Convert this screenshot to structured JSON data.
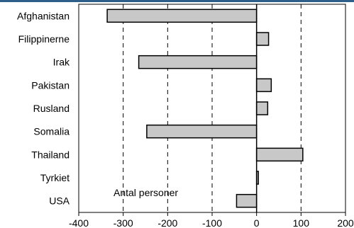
{
  "chart_data": {
    "type": "bar",
    "orientation": "horizontal",
    "categories": [
      "Afghanistan",
      "Filippinerne",
      "Irak",
      "Pakistan",
      "Rusland",
      "Somalia",
      "Thailand",
      "Tyrkiet",
      "USA"
    ],
    "values": [
      -336,
      27,
      -265,
      33,
      25,
      -247,
      104,
      4,
      -45
    ],
    "title": "",
    "xlabel": "",
    "ylabel": "",
    "xlim": [
      -400,
      200
    ],
    "xticks": [
      -400,
      -300,
      -200,
      -100,
      0,
      100,
      200
    ],
    "xtick_labels": [
      "-400",
      "-300",
      "-200",
      "-100",
      "0",
      "100",
      "200"
    ],
    "annotation": "Antal personer",
    "grid": "vertical dashed at -300, -200, -100, 100",
    "legend": "none",
    "bar_color": "#c8c8c8",
    "bar_edge_color": "#000000",
    "accent_color": "#2e5f8a"
  }
}
